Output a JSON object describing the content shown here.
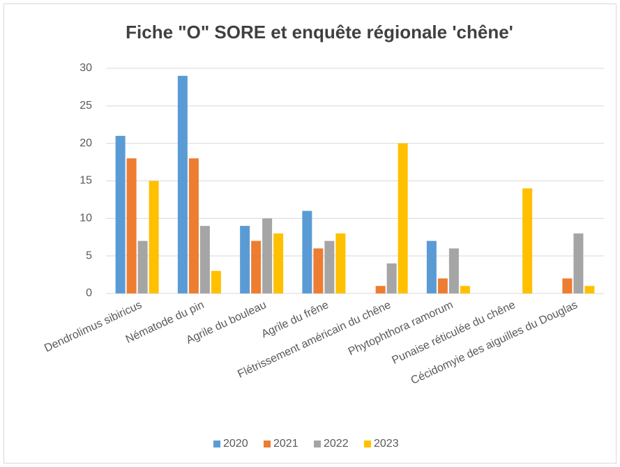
{
  "chart_data": {
    "type": "bar",
    "title": "Fiche \"O\" SORE et enquête régionale 'chêne'",
    "categories": [
      "Dendrolimus sibiricus",
      "Nématode du pin",
      "Agrile du bouleau",
      "Agrile du frêne",
      "Flétrissement américain du chêne",
      "Phytophthora ramorum",
      "Punaise réticulée du chêne",
      "Cécidomyie des aiguilles du Douglas"
    ],
    "series": [
      {
        "name": "2020",
        "color": "#5b9bd5",
        "values": [
          21,
          29,
          9,
          11,
          null,
          7,
          null,
          null
        ]
      },
      {
        "name": "2021",
        "color": "#ed7d31",
        "values": [
          18,
          18,
          7,
          6,
          1,
          2,
          null,
          2
        ]
      },
      {
        "name": "2022",
        "color": "#a5a5a5",
        "values": [
          7,
          9,
          10,
          7,
          4,
          6,
          null,
          8
        ]
      },
      {
        "name": "2023",
        "color": "#ffc000",
        "values": [
          15,
          3,
          8,
          8,
          20,
          1,
          14,
          1
        ]
      }
    ],
    "ylim": [
      0,
      30
    ],
    "yticks": [
      0,
      5,
      10,
      15,
      20,
      25,
      30
    ],
    "grid": true,
    "legend": "bottom"
  }
}
